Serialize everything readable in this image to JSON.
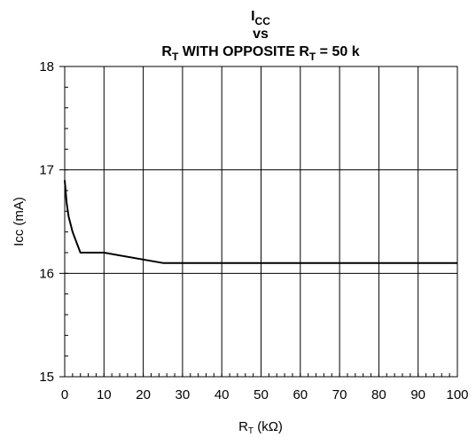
{
  "chart_data": {
    "type": "line",
    "title": {
      "line1_main": "I",
      "line1_sub": "CC",
      "line2": "vs",
      "line3_part1_main": "R",
      "line3_part1_sub": "T",
      "line3_middle": " WITH OPPOSITE R",
      "line3_part2_sub": "T",
      "line3_end": " = 50 k"
    },
    "xlabel": {
      "prefix": "R",
      "sub": "T",
      "suffix": " (kΩ)"
    },
    "ylabel": "Icc   (mA)",
    "xlim": [
      0,
      100
    ],
    "ylim": [
      15,
      18
    ],
    "x_ticks": [
      "0",
      "10",
      "20",
      "30",
      "40",
      "50",
      "60",
      "70",
      "80",
      "90",
      "100"
    ],
    "y_ticks": [
      "15",
      "16",
      "17",
      "18"
    ],
    "grid": true,
    "series": [
      {
        "x": [
          0,
          0.5,
          1,
          2,
          4,
          10,
          25,
          30,
          100
        ],
        "y": [
          16.9,
          16.68,
          16.55,
          16.4,
          16.2,
          16.2,
          16.1,
          16.1,
          16.1
        ]
      }
    ]
  }
}
